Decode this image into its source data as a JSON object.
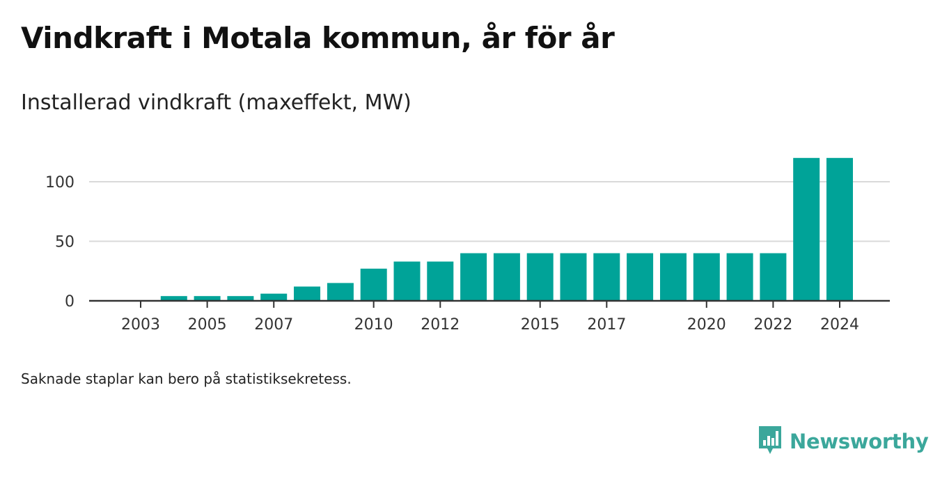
{
  "title": "Vindkraft i Motala kommun, år för år",
  "subtitle": "Installerad vindkraft (maxeffekt, MW)",
  "footnote": "Saknade staplar kan bero på statistiksekretess.",
  "brand": {
    "name": "Newsworthy",
    "logo_icon": "bar-chart-speech-bubble-icon",
    "color": "#3ba79b"
  },
  "chart_data": {
    "type": "bar",
    "title": "Vindkraft i Motala kommun, år för år",
    "subtitle": "Installerad vindkraft (maxeffekt, MW)",
    "xlabel": "",
    "ylabel": "",
    "categories": [
      "2003",
      "2004",
      "2005",
      "2006",
      "2007",
      "2008",
      "2009",
      "2010",
      "2011",
      "2012",
      "2013",
      "2014",
      "2015",
      "2016",
      "2017",
      "2018",
      "2019",
      "2020",
      "2021",
      "2022",
      "2023",
      "2024"
    ],
    "values": [
      null,
      4,
      4,
      4,
      6,
      12,
      15,
      27,
      33,
      33,
      40,
      40,
      40,
      40,
      40,
      40,
      40,
      40,
      40,
      40,
      120,
      120
    ],
    "x_tick_labels": [
      "2003",
      "2005",
      "2007",
      "2010",
      "2012",
      "2015",
      "2017",
      "2020",
      "2022",
      "2024"
    ],
    "y_ticks": [
      0,
      50,
      100
    ],
    "ylim": [
      0,
      120
    ],
    "bar_color": "#00a398",
    "grid": true
  }
}
